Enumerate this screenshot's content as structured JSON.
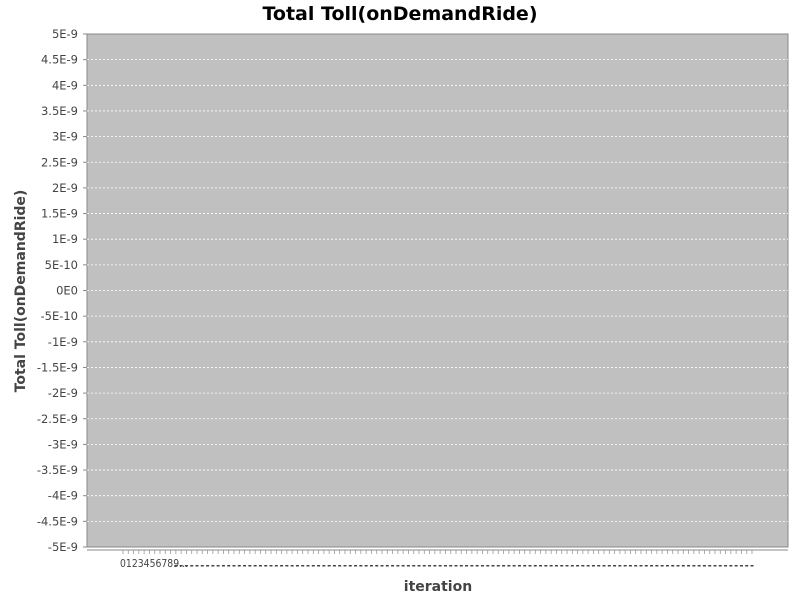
{
  "chart_data": {
    "type": "line",
    "title": "Total Toll(onDemandRide)",
    "xlabel": "iteration",
    "ylabel": "Total Toll(onDemandRide)",
    "ylim": [
      -5e-09,
      5e-09
    ],
    "y_ticks": [
      "5E-9",
      "4.5E-9",
      "4E-9",
      "3.5E-9",
      "3E-9",
      "2.5E-9",
      "2E-9",
      "1.5E-9",
      "1E-9",
      "5E-10",
      "0E0",
      "-5E-10",
      "-1E-9",
      "-1.5E-9",
      "-2E-9",
      "-2.5E-9",
      "-3E-9",
      "-3.5E-9",
      "-4E-9",
      "-4.5E-9",
      "-5E-9"
    ],
    "x_ticks": [
      "0",
      "1",
      "2",
      "3",
      "4",
      "5",
      "6",
      "7",
      "8",
      "9"
    ],
    "x_truncated_marker": "...",
    "x_category_count": 120,
    "series": [],
    "grid": true,
    "legend": "none",
    "colors": {
      "plot_background": "#c0c0c0",
      "grid": "#ffffff",
      "page_background": "#ffffff",
      "text": "#444444"
    }
  }
}
